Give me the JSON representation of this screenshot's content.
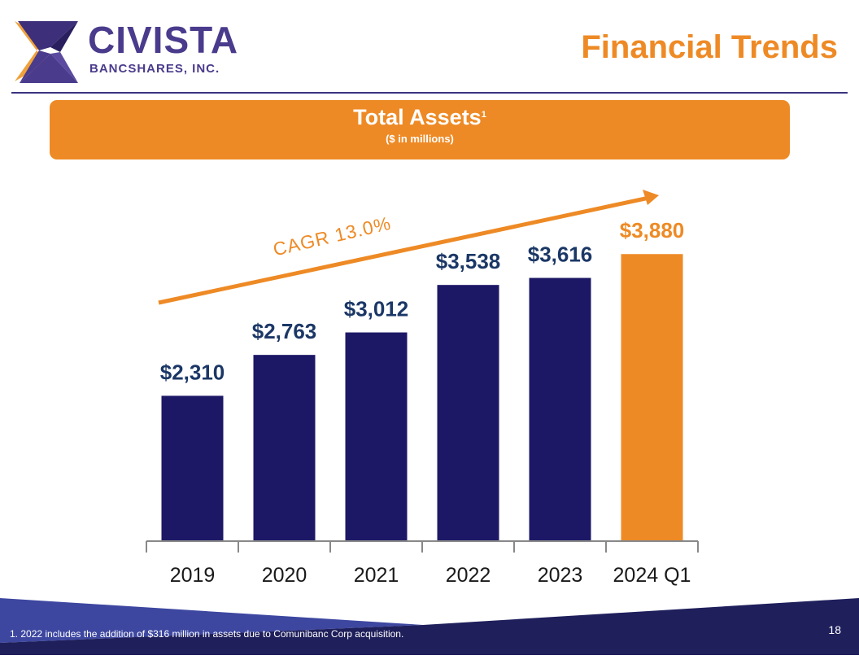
{
  "logo": {
    "name": "CIVISTA",
    "subtitle": "BANCSHARES, INC."
  },
  "header": {
    "title": "Financial Trends"
  },
  "banner": {
    "title": "Total Assets",
    "superscript": "1",
    "subtitle": "($ in millions)"
  },
  "chart_data": {
    "type": "bar",
    "title": "Total Assets",
    "subtitle": "($ in millions)",
    "categories": [
      "2019",
      "2020",
      "2021",
      "2022",
      "2023",
      "2024 Q1"
    ],
    "values": [
      2310,
      2763,
      3012,
      3538,
      3616,
      3880
    ],
    "data_labels": [
      "$2,310",
      "$2,763",
      "$3,012",
      "$3,538",
      "$3,616",
      "$3,880"
    ],
    "colors": [
      "#1c1866",
      "#1c1866",
      "#1c1866",
      "#1c1866",
      "#1c1866",
      "#ee8a25"
    ],
    "label_colors": [
      "#1b3766",
      "#1b3766",
      "#1b3766",
      "#1b3766",
      "#1b3766",
      "#ee8a25"
    ],
    "annotation": "CAGR 13.0%",
    "annotation_color": "#ee8a25",
    "ylim": [
      700,
      5000
    ],
    "grid": false,
    "xlabel": "",
    "ylabel": ""
  },
  "footer": {
    "footnote": "1.  2022 includes the addition of $316 million in assets due to Comunibanc Corp acquisition.",
    "page": "18"
  }
}
